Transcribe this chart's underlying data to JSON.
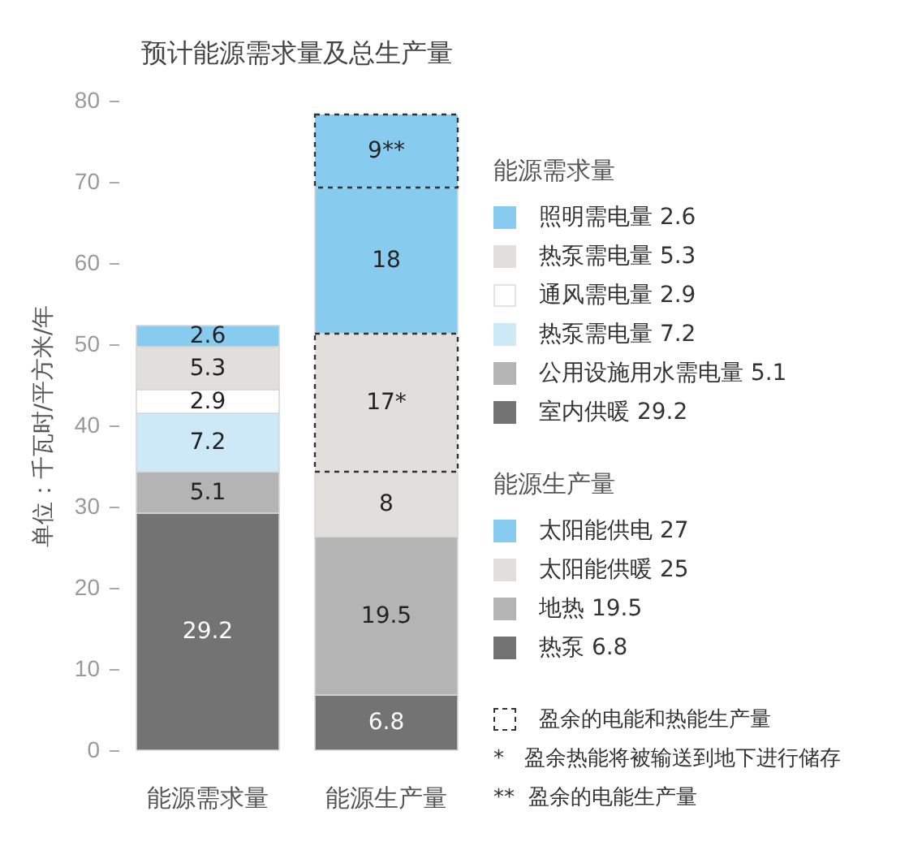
{
  "chart_data": {
    "type": "bar",
    "stacked": true,
    "title": "预计能源需求量及总生产量",
    "ylabel": "单位：千瓦时/平方米/年",
    "categories": [
      "能源需求量",
      "能源生产量"
    ],
    "ylim": [
      0,
      80
    ],
    "yticks": [
      0,
      10,
      20,
      30,
      40,
      50,
      60,
      70,
      80
    ],
    "legend": "right",
    "legend_title": [
      "能源需求量",
      "能源生产量"
    ],
    "series": [
      {
        "name": "室内供暖 29.2",
        "color": "#737373",
        "values": [
          29.2,
          null
        ],
        "value_labels": [
          "29.2",
          null
        ]
      },
      {
        "name": "公用设施用水需电量 5.1",
        "color": "#b4b4b4",
        "values": [
          5.1,
          null
        ],
        "value_labels": [
          "5.1",
          null
        ]
      },
      {
        "name": "热泵需电量 7.2",
        "color": "#cde9f7",
        "values": [
          7.2,
          null
        ],
        "value_labels": [
          "7.2",
          null
        ]
      },
      {
        "name": "通风需电量 2.9",
        "color": "#ffffff",
        "values": [
          2.9,
          null
        ],
        "value_labels": [
          "2.9",
          null
        ]
      },
      {
        "name": "热泵需电量 5.3",
        "color": "#e0dfdc",
        "values": [
          5.3,
          null
        ],
        "value_labels": [
          "5.3",
          null
        ]
      },
      {
        "name": "照明需电量 2.6",
        "color": "#87ccee",
        "values": [
          2.6,
          null
        ],
        "value_labels": [
          "2.6",
          null
        ]
      },
      {
        "name": "热泵 6.8",
        "color": "#737373",
        "values": [
          null,
          6.8
        ],
        "value_labels": [
          null,
          "6.8"
        ]
      },
      {
        "name": "地热 19.5",
        "color": "#b4b4b4",
        "values": [
          null,
          19.5
        ],
        "value_labels": [
          null,
          "19.5"
        ]
      },
      {
        "name": "太阳能供暖 25",
        "color": "#e0dfdc",
        "values": [
          null,
          8
        ],
        "value_labels": [
          null,
          "8"
        ]
      },
      {
        "color": "#e0dfdc",
        "values": [
          null,
          17
        ],
        "value_labels": [
          null,
          "17*"
        ],
        "line_style": "dashed"
      },
      {
        "name": "太阳能供电 27",
        "color": "#87ccee",
        "values": [
          null,
          18
        ],
        "value_labels": [
          null,
          "18"
        ]
      },
      {
        "color": "#87ccee",
        "values": [
          null,
          9
        ],
        "value_labels": [
          null,
          "9**"
        ],
        "line_style": "dashed"
      }
    ],
    "annotations": [
      "盈余的电能和热能生产量",
      "*   盈余热能将被输送到地下进行储存",
      "**  盈余的电能生产量"
    ]
  }
}
